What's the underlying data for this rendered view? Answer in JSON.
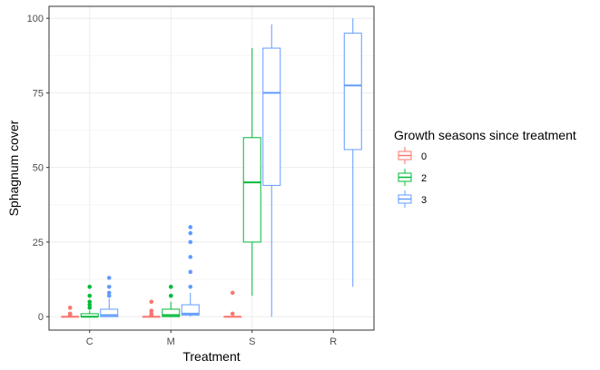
{
  "chart_data": {
    "type": "boxplot",
    "xlabel": "Treatment",
    "ylabel": "Sphagnum cover",
    "ylim": [
      -4.5,
      104
    ],
    "yticks": [
      0,
      25,
      50,
      75,
      100
    ],
    "yticklabels": [
      "0",
      "25",
      "50",
      "75",
      "100"
    ],
    "categories": [
      "C",
      "M",
      "S",
      "R"
    ],
    "grid": true,
    "legend": {
      "title": "Growth seasons since treatment",
      "placement": "right"
    },
    "series": [
      {
        "name": "0",
        "color": "#F8766D",
        "boxes": [
          {
            "category": "C",
            "min": 0,
            "q1": 0,
            "median": 0,
            "q3": 0,
            "max": 0,
            "outliers": [
              0.5,
              1,
              3
            ]
          },
          {
            "category": "M",
            "min": 0,
            "q1": 0,
            "median": 0,
            "q3": 0,
            "max": 0,
            "outliers": [
              0.5,
              1,
              2,
              5
            ]
          },
          {
            "category": "S",
            "min": 0,
            "q1": 0,
            "median": 0,
            "q3": 0,
            "max": 0,
            "outliers": [
              1,
              8
            ]
          }
        ]
      },
      {
        "name": "2",
        "color": "#00BA38",
        "boxes": [
          {
            "category": "C",
            "min": 0,
            "q1": 0,
            "median": 0,
            "q3": 1,
            "max": 2,
            "outliers": [
              3,
              4,
              5,
              7,
              10
            ]
          },
          {
            "category": "M",
            "min": 0,
            "q1": 0,
            "median": 0.5,
            "q3": 2.5,
            "max": 5,
            "outliers": [
              7,
              10
            ]
          },
          {
            "category": "S",
            "min": 7,
            "q1": 25,
            "median": 45,
            "q3": 60,
            "max": 90,
            "outliers": []
          }
        ]
      },
      {
        "name": "3",
        "color": "#619CFF",
        "boxes": [
          {
            "category": "C",
            "min": 0,
            "q1": 0,
            "median": 0.5,
            "q3": 2.5,
            "max": 6,
            "outliers": [
              7,
              8,
              10,
              13
            ]
          },
          {
            "category": "M",
            "min": 0,
            "q1": 0.5,
            "median": 1,
            "q3": 4,
            "max": 8,
            "outliers": [
              10,
              15,
              20,
              25,
              28,
              30
            ]
          },
          {
            "category": "S",
            "min": 0,
            "q1": 44,
            "median": 75,
            "q3": 90,
            "max": 98,
            "outliers": []
          },
          {
            "category": "R",
            "min": 10,
            "q1": 56,
            "median": 77.5,
            "q3": 95,
            "max": 100,
            "outliers": []
          }
        ]
      }
    ]
  }
}
